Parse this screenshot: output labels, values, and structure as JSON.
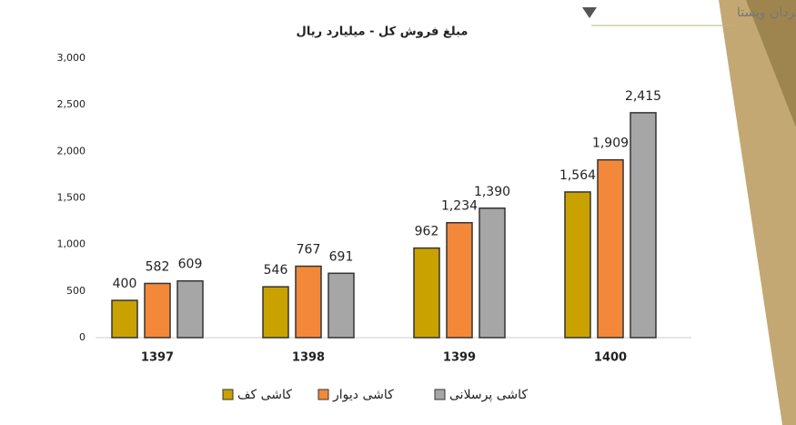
{
  "header": {
    "company": "شرکت سبدگردان ویستا"
  },
  "chart_data": {
    "type": "bar",
    "title": "مبلغ فروش  کل - میلیارد ریال",
    "categories": [
      "1397",
      "1398",
      "1399",
      "1400"
    ],
    "series": [
      {
        "name": "کاشی کف",
        "color": "#c9a200",
        "values": [
          400,
          546,
          962,
          1564
        ],
        "value_labels": [
          "400",
          "546",
          "962",
          "1,564"
        ]
      },
      {
        "name": "کاشی دیوار",
        "color": "#f3883a",
        "values": [
          582,
          767,
          1234,
          1909
        ],
        "value_labels": [
          "582",
          "767",
          "1,234",
          "1,909"
        ]
      },
      {
        "name": "کاشی پرسلانی",
        "color": "#a6a6a6",
        "values": [
          609,
          691,
          1390,
          2415
        ],
        "value_labels": [
          "609",
          "691",
          "1,390",
          "2,415"
        ]
      }
    ],
    "ylim": [
      0,
      3000
    ],
    "yticks": [
      0,
      500,
      {
        "value": 1000,
        "label": "1,000"
      },
      {
        "value": 1500,
        "label": "1,500"
      },
      {
        "value": 2000,
        "label": "2,000"
      },
      {
        "value": 2500,
        "label": "2,500"
      },
      {
        "value": 3000,
        "label": "3,000"
      }
    ],
    "grid": false
  }
}
